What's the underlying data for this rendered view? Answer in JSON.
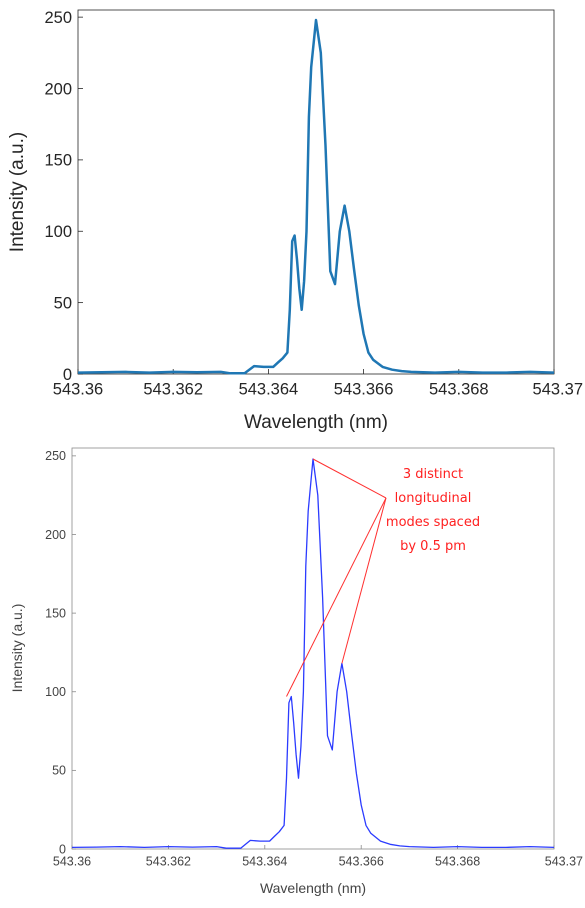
{
  "chart_data": [
    {
      "type": "line",
      "xlabel": "Wavelength (nm)",
      "ylabel": "Intensity (a.u.)",
      "xlim": [
        543.36,
        543.37
      ],
      "ylim": [
        0,
        255
      ],
      "xticks": [
        "543.36",
        "543.362",
        "543.364",
        "543.366",
        "543.368",
        "543.37"
      ],
      "yticks": [
        "0",
        "50",
        "100",
        "150",
        "200",
        "250"
      ],
      "grid": false,
      "series": [
        {
          "color": "#1f77b4",
          "points": [
            [
              543.36,
              1.0
            ],
            [
              543.3605,
              1.2
            ],
            [
              543.361,
              1.5
            ],
            [
              543.3615,
              1.0
            ],
            [
              543.362,
              1.5
            ],
            [
              543.3625,
              1.2
            ],
            [
              543.363,
              1.5
            ],
            [
              543.3632,
              0.5
            ],
            [
              543.3635,
              0.5
            ],
            [
              543.3637,
              5.5
            ],
            [
              543.3639,
              5.0
            ],
            [
              543.3641,
              5.0
            ],
            [
              543.3642,
              8.0
            ],
            [
              543.3643,
              11.0
            ],
            [
              543.3644,
              15.0
            ],
            [
              543.36445,
              45.0
            ],
            [
              543.3645,
              93.0
            ],
            [
              543.36455,
              97.0
            ],
            [
              543.3646,
              80.0
            ],
            [
              543.36465,
              60.0
            ],
            [
              543.3647,
              45.0
            ],
            [
              543.36475,
              65.0
            ],
            [
              543.3648,
              100.0
            ],
            [
              543.36485,
              180.0
            ],
            [
              543.3649,
              215.0
            ],
            [
              543.365,
              248.0
            ],
            [
              543.3651,
              225.0
            ],
            [
              543.3652,
              160.0
            ],
            [
              543.3653,
              72.0
            ],
            [
              543.3654,
              63.0
            ],
            [
              543.3655,
              100.0
            ],
            [
              543.3656,
              118.0
            ],
            [
              543.3657,
              100.0
            ],
            [
              543.3658,
              73.0
            ],
            [
              543.3659,
              48.0
            ],
            [
              543.366,
              28.0
            ],
            [
              543.3661,
              15.0
            ],
            [
              543.3662,
              10.0
            ],
            [
              543.3664,
              5.0
            ],
            [
              543.3666,
              3.0
            ],
            [
              543.3668,
              2.0
            ],
            [
              543.367,
              1.5
            ],
            [
              543.3675,
              1.0
            ],
            [
              543.368,
              1.5
            ],
            [
              543.3685,
              1.0
            ],
            [
              543.369,
              1.0
            ],
            [
              543.3695,
              1.5
            ],
            [
              543.37,
              1.0
            ]
          ]
        }
      ]
    },
    {
      "type": "line",
      "xlabel": "Wavelength (nm)",
      "ylabel": "Intensity (a.u.)",
      "xlim": [
        543.36,
        543.37
      ],
      "ylim": [
        0,
        255
      ],
      "xticks": [
        "543.36",
        "543.362",
        "543.364",
        "543.366",
        "543.368",
        "543.37"
      ],
      "yticks": [
        "0",
        "50",
        "100",
        "150",
        "200",
        "250"
      ],
      "grid": false,
      "series": [
        {
          "color": "#2b3bff",
          "points_same_as": "first chart"
        }
      ],
      "annotation": {
        "lines": [
          "3 distinct",
          "longitudinal",
          "modes spaced",
          "by 0.5 pm"
        ],
        "color": "#ff2020",
        "targets": [
          [
            543.365,
            248
          ],
          [
            543.36445,
            97
          ],
          [
            543.3656,
            118
          ]
        ]
      }
    }
  ]
}
